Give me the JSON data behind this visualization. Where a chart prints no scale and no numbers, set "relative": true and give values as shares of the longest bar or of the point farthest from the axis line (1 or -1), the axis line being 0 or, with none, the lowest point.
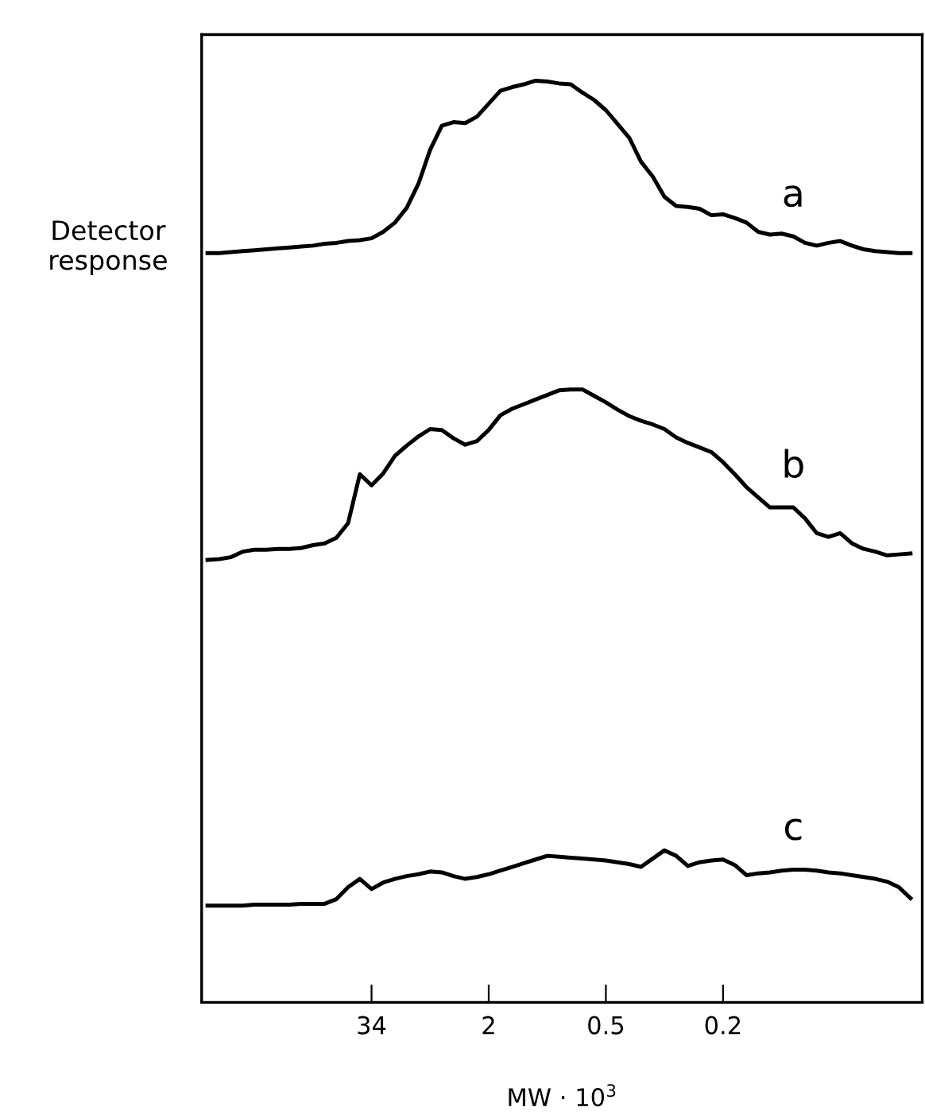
{
  "chart_data": {
    "type": "line",
    "relative": true,
    "ylabel": "Detector\nresponse",
    "xlabel": "MW · 10$^{3}$",
    "categories": [
      null,
      null,
      null,
      null,
      null,
      null,
      null,
      null,
      null,
      null,
      null,
      null,
      null,
      null,
      "34",
      null,
      null,
      null,
      null,
      null,
      null,
      null,
      null,
      null,
      "2",
      null,
      null,
      null,
      null,
      null,
      null,
      null,
      null,
      null,
      "0.5",
      null,
      null,
      null,
      null,
      null,
      null,
      null,
      null,
      null,
      "0.2",
      null,
      null,
      null,
      null,
      null,
      null,
      null,
      null,
      null,
      null,
      null,
      null,
      null,
      null,
      null,
      null
    ],
    "legend": false,
    "grid": false,
    "marker": "none",
    "line_style": "solid",
    "series": [
      {
        "name": "a",
        "color": "#000000",
        "values": [
          0.813,
          0.813,
          0.814,
          0.815,
          0.816,
          0.817,
          0.818,
          0.819,
          0.82,
          0.821,
          0.823,
          0.824,
          0.826,
          0.827,
          0.829,
          0.836,
          0.846,
          0.862,
          0.888,
          0.925,
          0.951,
          0.955,
          0.954,
          0.961,
          0.975,
          0.989,
          0.993,
          0.996,
          1,
          0.999,
          0.997,
          0.996,
          0.987,
          0.979,
          0.968,
          0.953,
          0.938,
          0.912,
          0.896,
          0.874,
          0.864,
          0.863,
          0.861,
          0.854,
          0.855,
          0.851,
          0.846,
          0.836,
          0.833,
          0.834,
          0.831,
          0.824,
          0.821,
          0.824,
          0.826,
          0.821,
          0.817,
          0.815,
          0.814,
          0.813,
          0.813
        ]
      },
      {
        "name": "b",
        "color": "#000000",
        "values": [
          0.48,
          0.481,
          0.483,
          0.489,
          0.491,
          0.491,
          0.492,
          0.492,
          0.493,
          0.496,
          0.498,
          0.504,
          0.52,
          0.573,
          0.561,
          0.574,
          0.593,
          0.604,
          0.614,
          0.622,
          0.621,
          0.612,
          0.605,
          0.609,
          0.621,
          0.637,
          0.644,
          0.649,
          0.654,
          0.659,
          0.664,
          0.665,
          0.665,
          0.658,
          0.651,
          0.643,
          0.636,
          0.631,
          0.627,
          0.622,
          0.613,
          0.607,
          0.602,
          0.597,
          0.586,
          0.573,
          0.559,
          0.548,
          0.537,
          0.537,
          0.537,
          0.525,
          0.509,
          0.505,
          0.509,
          0.498,
          0.492,
          0.489,
          0.485,
          0.486,
          0.487
        ]
      },
      {
        "name": "c",
        "color": "#000000",
        "values": [
          0.105,
          0.105,
          0.105,
          0.105,
          0.106,
          0.106,
          0.106,
          0.106,
          0.107,
          0.107,
          0.107,
          0.112,
          0.125,
          0.134,
          0.123,
          0.13,
          0.134,
          0.137,
          0.139,
          0.142,
          0.141,
          0.137,
          0.134,
          0.136,
          0.139,
          0.143,
          0.147,
          0.151,
          0.155,
          0.159,
          0.158,
          0.157,
          0.156,
          0.155,
          0.154,
          0.152,
          0.15,
          0.147,
          0.156,
          0.165,
          0.159,
          0.148,
          0.152,
          0.154,
          0.155,
          0.149,
          0.138,
          0.14,
          0.141,
          0.143,
          0.144,
          0.144,
          0.143,
          0.141,
          0.14,
          0.138,
          0.136,
          0.134,
          0.131,
          0.125,
          0.113
        ]
      }
    ]
  }
}
